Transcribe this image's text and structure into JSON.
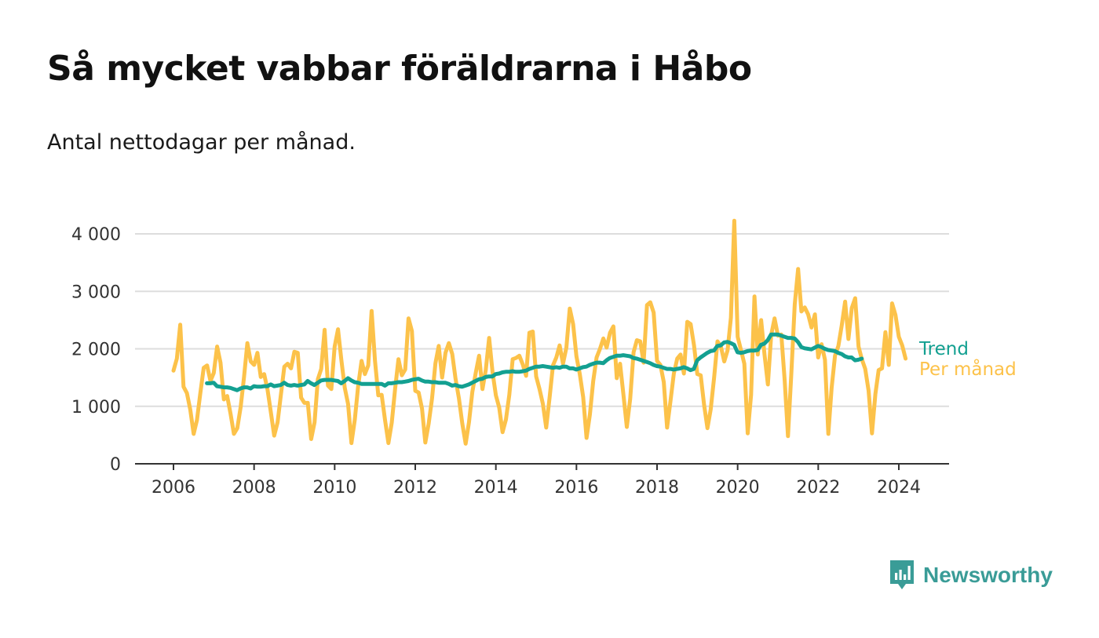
{
  "title": "Så mycket vabbar föräldrarna i Håbo",
  "subtitle": "Antal nettodagar per månad.",
  "brand": {
    "name": "Newsworthy",
    "color": "#3a9c97",
    "icon": "chart-bubble-icon"
  },
  "colors": {
    "monthly": "#fcc24a",
    "trend": "#13a091",
    "grid": "#dddddd",
    "axis": "#333333"
  },
  "chart_data": {
    "type": "line",
    "title": "Så mycket vabbar föräldrarna i Håbo",
    "ylabel": "Antal nettodagar per månad.",
    "xlabel": "",
    "xlim": [
      2005.0,
      2025.5
    ],
    "ylim": [
      0,
      4300
    ],
    "yticks": [
      0,
      1000,
      2000,
      3000,
      4000
    ],
    "ytick_labels": [
      "0",
      "1 000",
      "2 000",
      "3 000",
      "4 000"
    ],
    "xticks": [
      2006,
      2008,
      2010,
      2012,
      2014,
      2016,
      2018,
      2020,
      2022,
      2024
    ],
    "xtick_labels": [
      "2006",
      "2008",
      "2010",
      "2012",
      "2014",
      "2016",
      "2018",
      "2020",
      "2022",
      "2024"
    ],
    "grid": true,
    "legend_position": "right",
    "series": [
      {
        "name": "Per månad",
        "start": 2006.0,
        "step": 0.083333,
        "values": [
          1620,
          1830,
          2420,
          1340,
          1230,
          940,
          520,
          760,
          1230,
          1670,
          1710,
          1440,
          1580,
          2040,
          1760,
          1120,
          1180,
          870,
          520,
          620,
          990,
          1500,
          2100,
          1780,
          1720,
          1930,
          1510,
          1560,
          1290,
          890,
          490,
          720,
          1210,
          1690,
          1740,
          1660,
          1950,
          1930,
          1150,
          1060,
          1060,
          430,
          720,
          1470,
          1650,
          2330,
          1360,
          1300,
          2040,
          2340,
          1800,
          1320,
          1040,
          360,
          770,
          1360,
          1790,
          1560,
          1710,
          2660,
          1790,
          1190,
          1200,
          760,
          360,
          720,
          1300,
          1820,
          1540,
          1640,
          2530,
          2310,
          1270,
          1240,
          960,
          370,
          700,
          1140,
          1750,
          2050,
          1500,
          1930,
          2100,
          1910,
          1480,
          1140,
          700,
          350,
          720,
          1250,
          1580,
          1880,
          1300,
          1630,
          2190,
          1600,
          1190,
          980,
          550,
          770,
          1200,
          1820,
          1840,
          1880,
          1730,
          1530,
          2280,
          2300,
          1520,
          1300,
          1040,
          630,
          1150,
          1710,
          1850,
          2060,
          1740,
          2020,
          2700,
          2430,
          1870,
          1560,
          1160,
          450,
          850,
          1440,
          1850,
          2000,
          2180,
          2020,
          2280,
          2390,
          1490,
          1740,
          1200,
          640,
          1130,
          1940,
          2150,
          2130,
          1760,
          2760,
          2810,
          2630,
          1790,
          1720,
          1420,
          630,
          1090,
          1570,
          1830,
          1900,
          1570,
          2470,
          2430,
          2060,
          1560,
          1540,
          1030,
          620,
          950,
          1500,
          2130,
          2040,
          1780,
          1970,
          2540,
          4230,
          2210,
          1980,
          1740,
          530,
          1200,
          2910,
          1900,
          2500,
          1900,
          1380,
          2240,
          2530,
          2230,
          2250,
          1450,
          480,
          1580,
          2770,
          3390,
          2650,
          2720,
          2600,
          2370,
          2600,
          1850,
          2080,
          1810,
          520,
          1320,
          1880,
          2050,
          2410,
          2820,
          2170,
          2710,
          2880,
          2040,
          1820,
          1650,
          1270,
          530,
          1210,
          1630,
          1660,
          2290,
          1720,
          2790,
          2590,
          2210,
          2060,
          1830
        ]
      },
      {
        "name": "Trend",
        "start": 2006.83,
        "step": 0.083333,
        "values": [
          1400,
          1400,
          1410,
          1350,
          1340,
          1330,
          1330,
          1320,
          1300,
          1280,
          1310,
          1330,
          1330,
          1310,
          1350,
          1340,
          1340,
          1350,
          1350,
          1380,
          1350,
          1360,
          1370,
          1410,
          1370,
          1360,
          1370,
          1360,
          1370,
          1380,
          1440,
          1400,
          1370,
          1410,
          1450,
          1460,
          1460,
          1460,
          1450,
          1440,
          1400,
          1440,
          1490,
          1450,
          1420,
          1410,
          1390,
          1390,
          1390,
          1390,
          1390,
          1390,
          1390,
          1360,
          1400,
          1400,
          1410,
          1420,
          1420,
          1430,
          1440,
          1460,
          1470,
          1480,
          1450,
          1430,
          1430,
          1420,
          1420,
          1410,
          1410,
          1410,
          1390,
          1360,
          1370,
          1350,
          1340,
          1360,
          1380,
          1410,
          1440,
          1470,
          1480,
          1510,
          1520,
          1520,
          1560,
          1570,
          1590,
          1600,
          1600,
          1610,
          1600,
          1600,
          1610,
          1620,
          1650,
          1670,
          1690,
          1690,
          1700,
          1690,
          1680,
          1670,
          1680,
          1670,
          1690,
          1690,
          1660,
          1660,
          1640,
          1660,
          1680,
          1690,
          1720,
          1740,
          1760,
          1760,
          1750,
          1800,
          1840,
          1860,
          1880,
          1880,
          1890,
          1880,
          1870,
          1840,
          1830,
          1810,
          1790,
          1770,
          1750,
          1720,
          1700,
          1690,
          1670,
          1650,
          1650,
          1640,
          1650,
          1660,
          1680,
          1660,
          1630,
          1650,
          1800,
          1850,
          1890,
          1930,
          1960,
          1970,
          2050,
          2060,
          2110,
          2120,
          2100,
          2070,
          1940,
          1930,
          1940,
          1960,
          1970,
          1970,
          1980,
          2070,
          2090,
          2150,
          2250,
          2250,
          2250,
          2230,
          2210,
          2190,
          2190,
          2180,
          2120,
          2030,
          2010,
          2000,
          1990,
          2020,
          2050,
          2030,
          2000,
          1980,
          1970,
          1960,
          1930,
          1910,
          1870,
          1850,
          1850,
          1800,
          1810,
          1830
        ]
      }
    ]
  }
}
